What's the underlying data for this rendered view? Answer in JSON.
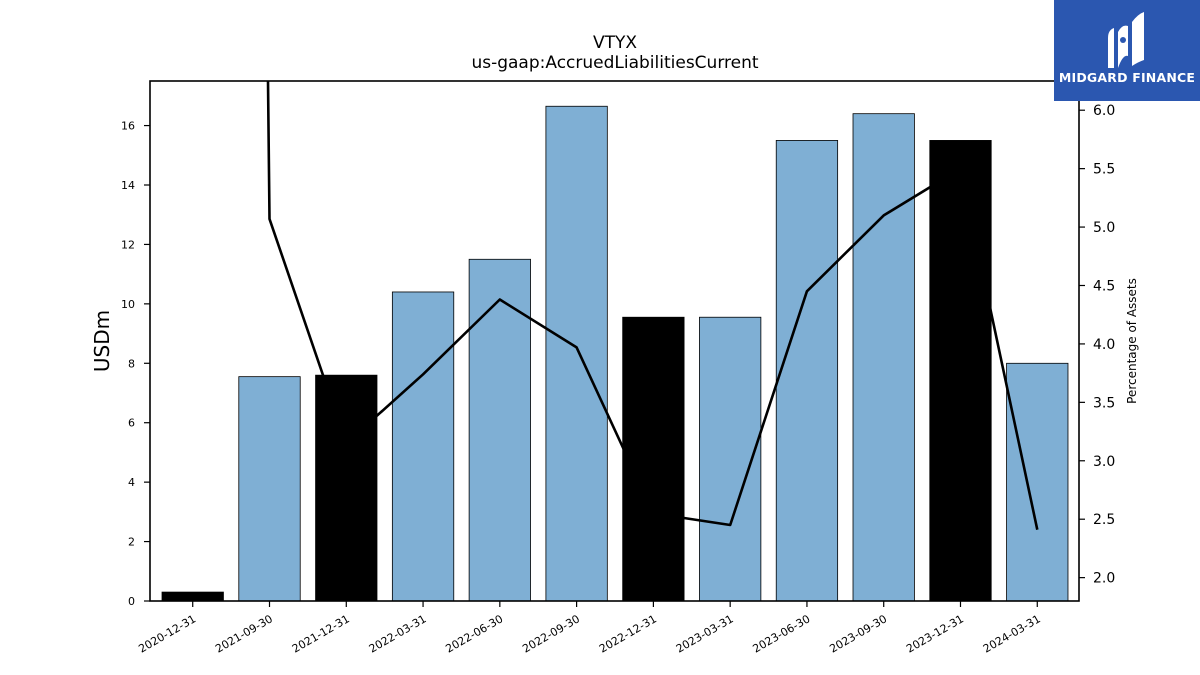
{
  "chart_data": {
    "type": "bar",
    "title": "VTYX",
    "subtitle": "us-gaap:AccruedLiabilitiesCurrent",
    "ylabel": "USDm",
    "y2label": "Percentage of Assets",
    "ylim": [
      0,
      17.5
    ],
    "y2lim": [
      1.8,
      6.25
    ],
    "yticks": [
      0,
      2,
      4,
      6,
      8,
      10,
      12,
      14,
      16
    ],
    "y2ticks": [
      2.0,
      2.5,
      3.0,
      3.5,
      4.0,
      4.5,
      5.0,
      5.5,
      6.0
    ],
    "categories": [
      "2020-12-31",
      "2021-09-30",
      "2021-12-31",
      "2022-03-31",
      "2022-06-30",
      "2022-09-30",
      "2022-12-31",
      "2023-03-31",
      "2023-06-30",
      "2023-09-30",
      "2023-12-31",
      "2024-03-31"
    ],
    "series": [
      {
        "type": "bar",
        "values": [
          0.3,
          7.55,
          7.6,
          10.4,
          11.5,
          16.65,
          9.55,
          9.55,
          15.5,
          16.4,
          15.5,
          8.0
        ],
        "colors": [
          "#000000",
          "#7fafd4",
          "#000000",
          "#7fafd4",
          "#7fafd4",
          "#7fafd4",
          "#000000",
          "#7fafd4",
          "#7fafd4",
          "#7fafd4",
          "#000000",
          "#7fafd4"
        ]
      },
      {
        "type": "line",
        "axis": "secondary",
        "values": [
          null,
          5.07,
          3.15,
          3.74,
          4.38,
          3.97,
          2.55,
          2.45,
          4.45,
          5.1,
          5.5,
          2.41
        ],
        "start_above_top": true,
        "color": "#000000"
      }
    ],
    "grid": false
  },
  "brand": {
    "name": "MIDGARD FINANCE",
    "background": "#2b57b0"
  }
}
